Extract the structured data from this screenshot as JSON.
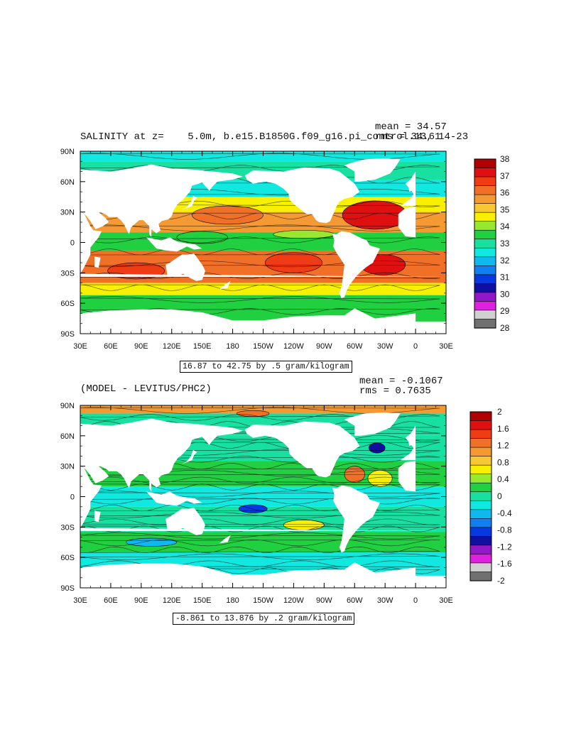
{
  "panel1": {
    "title_left": "SALINITY at z=    5.0m, b.e15.B1850G.f09_g16.pi_control.13, 14-23",
    "mean_text": "mean = 34.57",
    "rms_text": "rms = 34.61",
    "range_text": "16.87 to 42.75 by .5 gram/kilogram",
    "y_ticks": [
      "90N",
      "60N",
      "30N",
      "0",
      "30S",
      "60S",
      "90S"
    ],
    "x_ticks": [
      "30E",
      "60E",
      "90E",
      "120E",
      "150E",
      "180",
      "150W",
      "120W",
      "90W",
      "60W",
      "30W",
      "0",
      "30E"
    ],
    "colorbar": {
      "labels": [
        "38",
        "37",
        "36",
        "35",
        "34",
        "33",
        "32",
        "31",
        "30",
        "29",
        "28"
      ],
      "colors": [
        "#b00000",
        "#e01010",
        "#f03c14",
        "#f07028",
        "#f59a32",
        "#f8c832",
        "#f8f000",
        "#98e830",
        "#20d040",
        "#18e0a0",
        "#10e8e0",
        "#10b8f0",
        "#1080f0",
        "#0838e0",
        "#1010a0",
        "#9018c8",
        "#e020e0",
        "#d0d0d0",
        "#707070"
      ]
    }
  },
  "panel2": {
    "title_left": "(MODEL - LEVITUS/PHC2)",
    "mean_text": "mean = -0.1067",
    "rms_text": "rms = 0.7635",
    "range_text": "-8.861 to 13.876 by .2 gram/kilogram",
    "y_ticks": [
      "90N",
      "60N",
      "30N",
      "0",
      "30S",
      "60S",
      "90S"
    ],
    "x_ticks": [
      "30E",
      "60E",
      "90E",
      "120E",
      "150E",
      "180",
      "150W",
      "120W",
      "90W",
      "60W",
      "30W",
      "0",
      "30E"
    ],
    "colorbar": {
      "labels": [
        "2",
        "1.6",
        "1.2",
        "0.8",
        "0.4",
        "0",
        "-0.4",
        "-0.8",
        "-1.2",
        "-1.6",
        "-2"
      ],
      "colors": [
        "#b00000",
        "#e01010",
        "#f03c14",
        "#f07028",
        "#f59a32",
        "#f8c832",
        "#f8f000",
        "#98e830",
        "#20d040",
        "#18e0a0",
        "#10e8e0",
        "#10b8f0",
        "#1080f0",
        "#0838e0",
        "#1010a0",
        "#9018c8",
        "#e020e0",
        "#d0d0d0",
        "#707070"
      ]
    }
  }
}
